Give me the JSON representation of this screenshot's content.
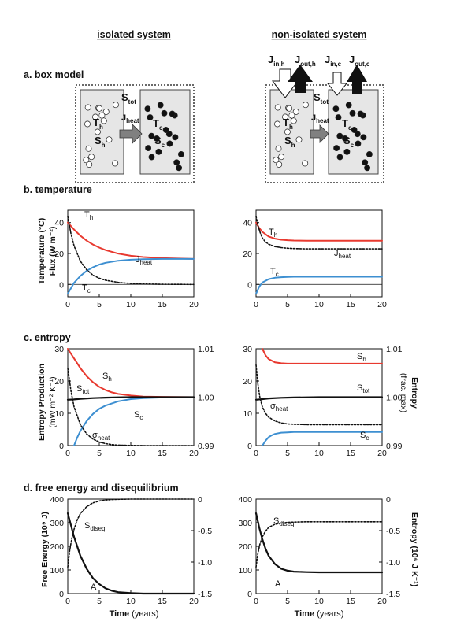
{
  "headers": {
    "left": "isolated system",
    "right": "non-isolated system"
  },
  "sections": {
    "a": "a. box model",
    "b": "b. temperature",
    "c": "c. entropy",
    "d": "d. free energy and disequilibrium"
  },
  "box_model": {
    "S": "S",
    "T": "T",
    "J": "J",
    "tot": "tot",
    "h": "h",
    "c": "c",
    "heat": "heat",
    "in_h": "in,h",
    "out_h": "out,h",
    "in_c": "in,c",
    "out_c": "out,c"
  },
  "axis_labels": {
    "temp": "Temperature (°C)",
    "flux": "Flux (W m⁻²)",
    "ent_prod_1": "Entropy Production",
    "ent_prod_2": "(mW m⁻² K⁻¹)",
    "ent_frac_1": "Entropy",
    "ent_frac_2": "(frac. max)",
    "free_energy": "Free Energy (10⁹ J)",
    "ent_abs": "Entropy (10⁶ J K⁻¹)",
    "time_bold": "Time",
    "time_rest": "(years)"
  },
  "curve_labels": {
    "T": "T",
    "h": "h",
    "c": "c",
    "J": "J",
    "heat": "heat",
    "S": "S",
    "tot": "tot",
    "sigma": "σ",
    "diseq": "diseq",
    "A": "A"
  },
  "colors": {
    "hot": "#e8392f",
    "cold": "#3d8fd1",
    "black": "#111111",
    "box_fill": "#e6e6e6",
    "arrow_gray": "#808080"
  },
  "chart_data": [
    {
      "type": "line",
      "panel": "b-isolated",
      "xlim": [
        0,
        20
      ],
      "ylim": [
        -8,
        48
      ],
      "xticks": [
        "0",
        "5",
        "10",
        "15",
        "20"
      ],
      "yticks": [
        "0",
        "20",
        "40"
      ],
      "series": [
        {
          "name": "Th",
          "x": [
            0,
            1,
            2,
            3,
            4,
            5,
            6,
            8,
            10,
            12,
            15,
            20
          ],
          "y": [
            40,
            35.5,
            31.5,
            28.3,
            25.8,
            23.8,
            22.2,
            19.9,
            18.5,
            17.7,
            17,
            16.5
          ]
        },
        {
          "name": "Tc",
          "x": [
            0,
            1,
            2,
            3,
            4,
            5,
            6,
            8,
            10,
            12,
            15,
            20
          ],
          "y": [
            -6,
            1,
            5.5,
            8.8,
            11.1,
            12.8,
            14,
            15.3,
            16,
            16.3,
            16.5,
            16.5
          ]
        },
        {
          "name": "Jheat",
          "x": [
            0,
            0.5,
            1,
            2,
            3,
            4,
            5,
            6,
            8,
            10,
            12,
            15,
            20
          ],
          "y": [
            44,
            33,
            25,
            15,
            9.5,
            6,
            4,
            2.7,
            1.3,
            0.6,
            0.3,
            0.1,
            0
          ]
        }
      ]
    },
    {
      "type": "line",
      "panel": "b-non-isolated",
      "xlim": [
        0,
        20
      ],
      "ylim": [
        -8,
        48
      ],
      "xticks": [
        "0",
        "5",
        "10",
        "15",
        "20"
      ],
      "yticks": [
        "0",
        "20",
        "40"
      ],
      "series": [
        {
          "name": "Th",
          "x": [
            0,
            0.5,
            1,
            2,
            3,
            4,
            5,
            6,
            8,
            10,
            15,
            20
          ],
          "y": [
            40,
            36.5,
            34,
            31,
            29.6,
            28.9,
            28.6,
            28.4,
            28.3,
            28.3,
            28.3,
            28.3
          ]
        },
        {
          "name": "Tc",
          "x": [
            0,
            0.5,
            1,
            2,
            3,
            4,
            5,
            6,
            8,
            10,
            15,
            20
          ],
          "y": [
            -6,
            -1.5,
            1.2,
            3.4,
            4.3,
            4.7,
            4.9,
            5,
            5,
            5,
            5,
            5
          ]
        },
        {
          "name": "Jheat",
          "x": [
            0,
            0.3,
            0.7,
            1,
            1.5,
            2,
            3,
            4,
            5,
            6,
            8,
            10,
            15,
            20
          ],
          "y": [
            44,
            38,
            33,
            30,
            27.5,
            26,
            24.5,
            23.8,
            23.4,
            23.2,
            23,
            23,
            23,
            23
          ]
        }
      ]
    },
    {
      "type": "line",
      "panel": "c-isolated",
      "xlim": [
        0,
        20
      ],
      "ylim": [
        0,
        30
      ],
      "right_ylim": [
        0.99,
        1.01
      ],
      "xticks": [
        "0",
        "5",
        "10",
        "15",
        "20"
      ],
      "yticks": [
        "0",
        "10",
        "20",
        "30"
      ],
      "right_yticks": [
        "0.99",
        "1.00",
        "1.01"
      ],
      "series": [
        {
          "name": "Sh",
          "x": [
            0,
            1,
            2,
            3,
            4,
            5,
            6,
            7,
            8,
            10,
            12,
            15,
            20
          ],
          "y": [
            30,
            27,
            24,
            21.5,
            19.6,
            18.2,
            17.2,
            16.5,
            16,
            15.5,
            15.2,
            15.1,
            15
          ]
        },
        {
          "name": "Sc",
          "x": [
            1,
            1.5,
            2,
            3,
            4,
            5,
            6,
            8,
            10,
            12,
            15,
            20
          ],
          "y": [
            0,
            2.5,
            4.5,
            7.6,
            9.8,
            11.4,
            12.4,
            13.7,
            14.4,
            14.7,
            14.9,
            15
          ]
        },
        {
          "name": "Stot",
          "x": [
            0,
            1,
            2,
            4,
            6,
            8,
            10,
            15,
            20
          ],
          "y": [
            14.2,
            14.3,
            14.5,
            14.7,
            14.85,
            14.95,
            15,
            15,
            15
          ]
        },
        {
          "name": "σheat",
          "x": [
            0,
            0.5,
            1,
            2,
            3,
            4,
            5,
            6,
            7,
            8,
            10,
            12,
            15,
            20
          ],
          "y": [
            24,
            17,
            12,
            6.5,
            3.6,
            2,
            1.1,
            0.6,
            0.3,
            0.15,
            0.05,
            0,
            0,
            0
          ]
        }
      ]
    },
    {
      "type": "line",
      "panel": "c-non-isolated",
      "xlim": [
        0,
        20
      ],
      "ylim": [
        0,
        30
      ],
      "right_ylim": [
        0.99,
        1.01
      ],
      "xticks": [
        "0",
        "5",
        "10",
        "15",
        "20"
      ],
      "yticks": [
        "0",
        "10",
        "20",
        "30"
      ],
      "right_yticks": [
        "0.99",
        "1.00",
        "1.01"
      ],
      "series": [
        {
          "name": "Sh",
          "x": [
            1,
            1.5,
            2,
            3,
            4,
            5,
            6,
            8,
            10,
            15,
            20
          ],
          "y": [
            30,
            28,
            26.8,
            25.8,
            25.5,
            25.4,
            25.4,
            25.4,
            25.4,
            25.4,
            25.4
          ]
        },
        {
          "name": "Sc",
          "x": [
            1,
            1.5,
            2,
            2.5,
            3,
            4,
            5,
            6,
            8,
            10,
            15,
            20
          ],
          "y": [
            0,
            1.5,
            2.6,
            3.2,
            3.6,
            4,
            4.1,
            4.2,
            4.2,
            4.2,
            4.2,
            4.2
          ]
        },
        {
          "name": "Stot",
          "x": [
            0,
            1,
            2,
            4,
            6,
            10,
            15,
            20
          ],
          "y": [
            14.2,
            14.4,
            14.6,
            14.8,
            14.9,
            15,
            15,
            15
          ]
        },
        {
          "name": "σheat",
          "x": [
            0,
            0.3,
            0.6,
            1,
            1.5,
            2,
            3,
            4,
            5,
            6,
            8,
            10,
            15,
            20
          ],
          "y": [
            25,
            19,
            15,
            12,
            10,
            8.8,
            7.6,
            7,
            6.7,
            6.6,
            6.5,
            6.5,
            6.5,
            6.5
          ]
        }
      ]
    },
    {
      "type": "line",
      "panel": "d-isolated",
      "xlim": [
        0,
        20
      ],
      "ylim": [
        0,
        400
      ],
      "right_ylim": [
        -1.5,
        0
      ],
      "xticks": [
        "0",
        "5",
        "10",
        "15",
        "20"
      ],
      "yticks": [
        "0",
        "100",
        "200",
        "300",
        "400"
      ],
      "right_yticks": [
        "0",
        "-0.5",
        "-1.0",
        "-1.5"
      ],
      "series": [
        {
          "name": "A",
          "x": [
            0,
            0.5,
            1,
            1.5,
            2,
            3,
            4,
            5,
            6,
            7,
            8,
            10,
            12,
            15,
            20
          ],
          "y": [
            340,
            290,
            240,
            200,
            160,
            105,
            65,
            40,
            22,
            12,
            6,
            2,
            0,
            0,
            0
          ]
        },
        {
          "name": "Sdiseq",
          "x": [
            0,
            0.3,
            0.6,
            1,
            1.5,
            2,
            3,
            4,
            5,
            6,
            7,
            8,
            10,
            12,
            15,
            20
          ],
          "y": [
            -1.08,
            -0.82,
            -0.65,
            -0.48,
            -0.33,
            -0.23,
            -0.12,
            -0.06,
            -0.03,
            -0.015,
            -0.008,
            -0.004,
            0,
            0,
            0,
            0
          ]
        }
      ]
    },
    {
      "type": "line",
      "panel": "d-non-isolated",
      "xlim": [
        0,
        20
      ],
      "ylim": [
        0,
        400
      ],
      "right_ylim": [
        -1.5,
        0
      ],
      "xticks": [
        "0",
        "5",
        "10",
        "15",
        "20"
      ],
      "yticks": [
        "0",
        "100",
        "200",
        "300",
        "400"
      ],
      "right_yticks": [
        "0",
        "-0.5",
        "-1.0",
        "-1.5"
      ],
      "series": [
        {
          "name": "A",
          "x": [
            0,
            0.5,
            1,
            1.5,
            2,
            3,
            4,
            5,
            6,
            8,
            10,
            15,
            20
          ],
          "y": [
            340,
            280,
            230,
            190,
            160,
            125,
            105,
            97,
            93,
            91,
            90,
            90,
            90
          ]
        },
        {
          "name": "Sdiseq",
          "x": [
            0,
            0.3,
            0.6,
            1,
            1.5,
            2,
            3,
            4,
            5,
            6,
            8,
            10,
            15,
            20
          ],
          "y": [
            -1.08,
            -0.86,
            -0.72,
            -0.6,
            -0.51,
            -0.45,
            -0.4,
            -0.38,
            -0.37,
            -0.365,
            -0.36,
            -0.36,
            -0.36,
            -0.36
          ]
        }
      ]
    }
  ]
}
